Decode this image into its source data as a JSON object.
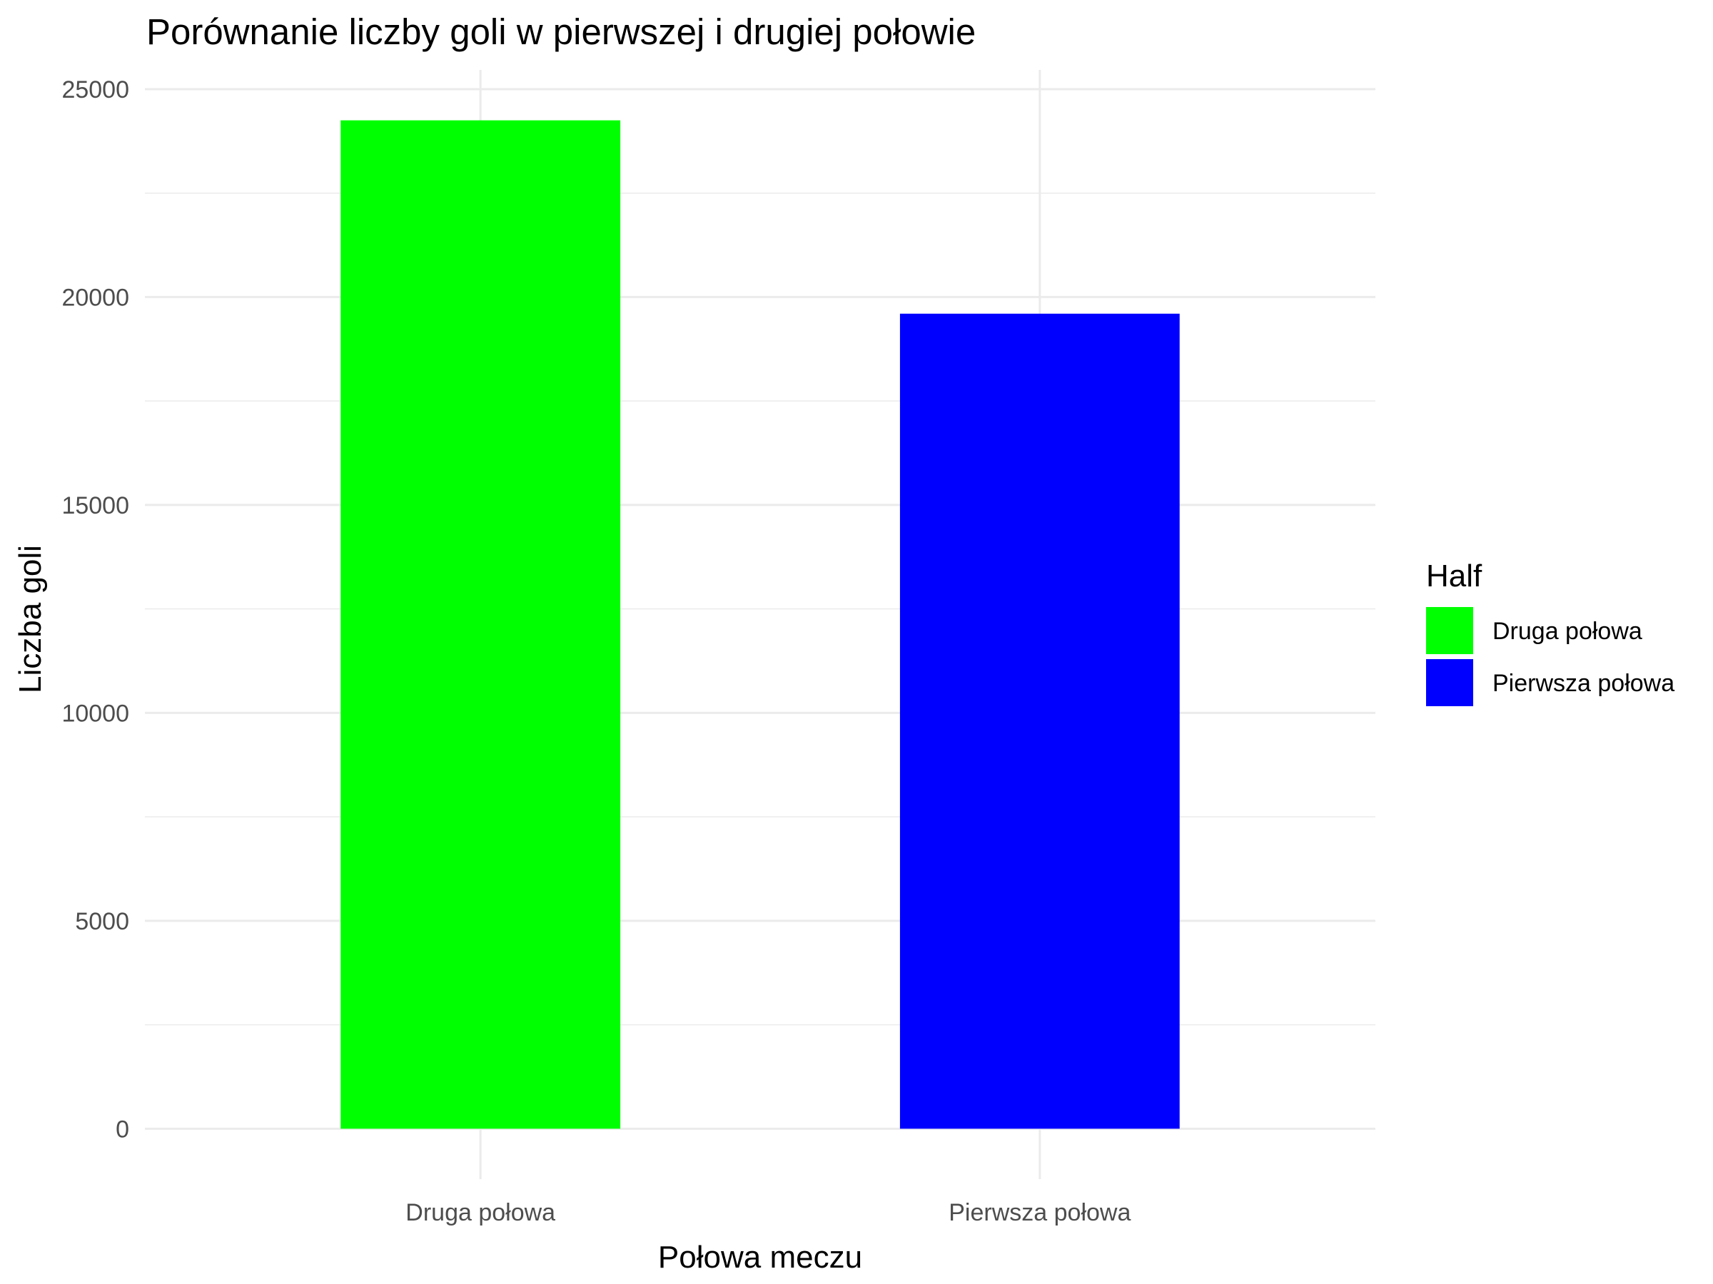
{
  "chart_data": {
    "type": "bar",
    "title": "Porównanie liczby goli w pierwszej i drugiej połowie",
    "xlabel": "Połowa meczu",
    "ylabel": "Liczba goli",
    "categories": [
      "Druga połowa",
      "Pierwsza połowa"
    ],
    "values": [
      24250,
      19600
    ],
    "colors": [
      "#00ff00",
      "#0000ff"
    ],
    "ylim": [
      0,
      25000
    ],
    "yticks": [
      0,
      5000,
      10000,
      15000,
      20000,
      25000
    ],
    "ytick_labels": [
      "0",
      "5000",
      "10000",
      "15000",
      "20000",
      "25000"
    ],
    "grid": true,
    "legend": {
      "title": "Half",
      "placement": "right",
      "entries": [
        {
          "label": "Druga połowa",
          "color": "#00ff00"
        },
        {
          "label": "Pierwsza połowa",
          "color": "#0000ff"
        }
      ]
    }
  }
}
